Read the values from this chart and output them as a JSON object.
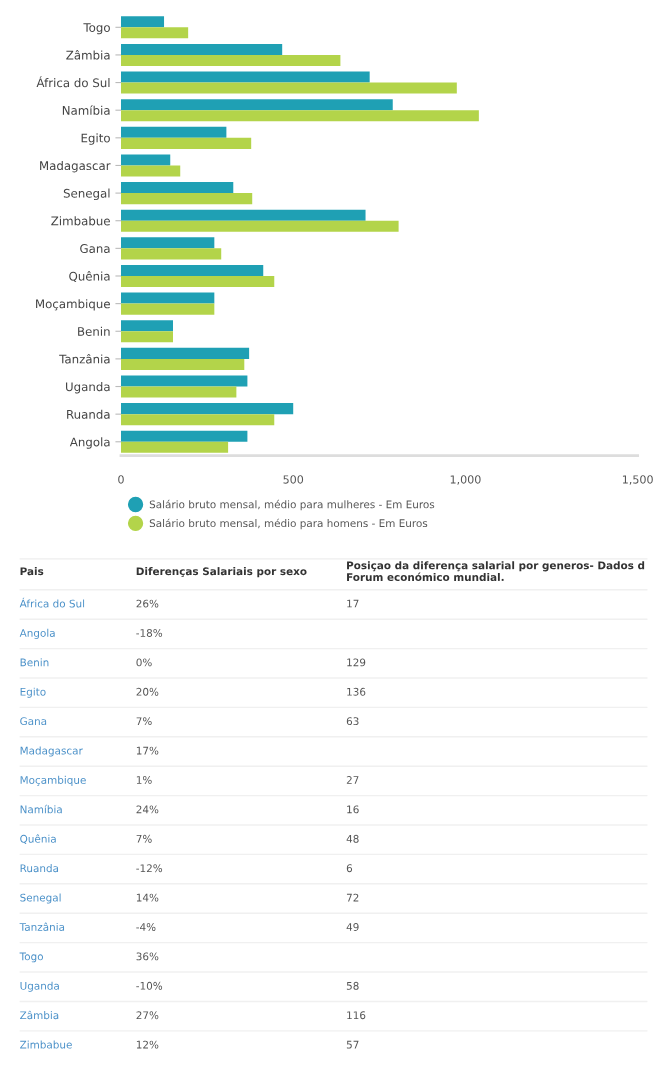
{
  "chart_data": [
    {
      "type": "bar",
      "orientation": "horizontal",
      "categories": [
        "Togo",
        "Zâmbia",
        "África do Sul",
        "Namíbia",
        "Egito",
        "Madagascar",
        "Senegal",
        "Zimbabue",
        "Gana",
        "Quênia",
        "Moçambique",
        "Benin",
        "Tanzânia",
        "Uganda",
        "Ruanda",
        "Angola"
      ],
      "series": [
        {
          "name": "Salário bruto mensal, médio para mulheres - Em Euros",
          "color": "#1fa0b4",
          "values": [
            125,
            468,
            722,
            789,
            306,
            143,
            326,
            710,
            271,
            413,
            271,
            151,
            372,
            367,
            500,
            367
          ]
        },
        {
          "name": "Salário bruto mensal, médio para homens - Em Euros",
          "color": "#b3d44a",
          "values": [
            195,
            637,
            975,
            1039,
            378,
            172,
            381,
            806,
            291,
            445,
            271,
            151,
            358,
            335,
            445,
            311
          ]
        }
      ],
      "xlim": [
        0,
        1500
      ],
      "xticks": [
        0,
        500,
        {
          "value": 1000,
          "label": "1,000"
        },
        {
          "value": 1500,
          "label": "1,500"
        }
      ],
      "grid": false,
      "legend": "bottom",
      "marker": "circle"
    },
    {
      "type": "other",
      "xlabel": "Pais",
      "categories": [
        "África do Sul",
        "Angola",
        "Benin",
        "Egito",
        "Gana",
        "Madagascar",
        "Moçambique",
        "Namíbia",
        "Quênia",
        "Ruanda",
        "Senegal",
        "Tanzânia",
        "Togo",
        "Uganda",
        "Zâmbia",
        "Zimbabue"
      ],
      "series": [
        {
          "name": "Diferenças Salariais por sexo",
          "values": [
            26,
            -18,
            0,
            20,
            7,
            17,
            1,
            24,
            7,
            -12,
            14,
            -4,
            36,
            -10,
            27,
            12
          ],
          "value_labels": [
            "26%",
            "-18%",
            "0%",
            "20%",
            "7%",
            "17%",
            "1%",
            "24%",
            "7%",
            "-12%",
            "14%",
            "-4%",
            "36%",
            "-10%",
            "27%",
            "12%"
          ]
        },
        {
          "name": "Posiçao da diferença salarial por generos- Dados d Forum económico mundial.",
          "values": [
            17,
            null,
            129,
            136,
            63,
            null,
            27,
            16,
            48,
            6,
            72,
            49,
            null,
            58,
            116,
            57
          ],
          "value_labels": [
            "17",
            null,
            "129",
            "136",
            "63",
            null,
            "27",
            "16",
            "48",
            "6",
            "72",
            "49",
            null,
            "58",
            "116",
            "57"
          ]
        }
      ]
    }
  ]
}
